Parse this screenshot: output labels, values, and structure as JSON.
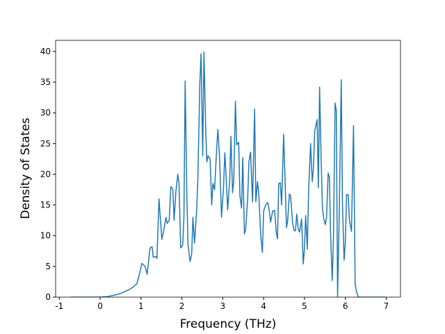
{
  "chart_data": {
    "type": "line",
    "x_label": "Frequency (THz)",
    "y_label": "Density of States",
    "xlim": [
      -1.09,
      7.35
    ],
    "ylim": [
      0,
      41.8
    ],
    "xticks": [
      -1,
      0,
      1,
      2,
      3,
      4,
      5,
      6,
      7
    ],
    "yticks": [
      0,
      5,
      10,
      15,
      20,
      25,
      30,
      35,
      40
    ],
    "x": [
      -0.71,
      0.0,
      0.1,
      0.2,
      0.3,
      0.4,
      0.5,
      0.6,
      0.7,
      0.8,
      0.9,
      0.97,
      1.02,
      1.1,
      1.15,
      1.22,
      1.27,
      1.3,
      1.36,
      1.39,
      1.44,
      1.51,
      1.56,
      1.61,
      1.64,
      1.69,
      1.73,
      1.78,
      1.81,
      1.85,
      1.9,
      1.93,
      1.97,
      2.02,
      2.05,
      2.08,
      2.12,
      2.15,
      2.2,
      2.24,
      2.27,
      2.31,
      2.36,
      2.39,
      2.44,
      2.47,
      2.51,
      2.54,
      2.58,
      2.61,
      2.64,
      2.69,
      2.73,
      2.76,
      2.8,
      2.85,
      2.88,
      2.92,
      2.97,
      3.02,
      3.05,
      3.08,
      3.12,
      3.17,
      3.2,
      3.24,
      3.27,
      3.31,
      3.34,
      3.39,
      3.42,
      3.46,
      3.49,
      3.53,
      3.56,
      3.61,
      3.64,
      3.68,
      3.73,
      3.78,
      3.81,
      3.85,
      3.88,
      3.93,
      3.97,
      4.0,
      4.05,
      4.1,
      4.14,
      4.17,
      4.22,
      4.27,
      4.31,
      4.34,
      4.37,
      4.41,
      4.44,
      4.49,
      4.53,
      4.56,
      4.59,
      4.63,
      4.66,
      4.71,
      4.75,
      4.78,
      4.81,
      4.85,
      4.88,
      4.93,
      4.97,
      5.0,
      5.03,
      5.07,
      5.1,
      5.15,
      5.19,
      5.22,
      5.25,
      5.31,
      5.34,
      5.37,
      5.41,
      5.44,
      5.47,
      5.51,
      5.54,
      5.58,
      5.61,
      5.64,
      5.68,
      5.71,
      5.75,
      5.78,
      5.81,
      5.85,
      5.9,
      5.93,
      5.97,
      6.0,
      6.03,
      6.07,
      6.1,
      6.15,
      6.2,
      6.24,
      6.27,
      6.32,
      6.97
    ],
    "series": [
      {
        "color": "#1f77b4",
        "values": [
          0,
          0,
          0.05,
          0.12,
          0.25,
          0.4,
          0.6,
          0.9,
          1.2,
          1.6,
          2.2,
          4,
          5.5,
          5,
          3.7,
          8,
          8.2,
          6.5,
          6.6,
          6.3,
          16,
          9.4,
          11,
          13,
          12,
          12.5,
          18,
          17.5,
          12.5,
          17,
          20,
          18.5,
          8,
          8.5,
          13,
          35.2,
          17,
          8.5,
          5.8,
          7,
          13,
          8.8,
          14,
          19,
          35,
          39.6,
          23,
          39.9,
          28,
          22,
          23,
          22.5,
          15,
          18.5,
          17.5,
          24,
          27.3,
          23,
          13,
          18,
          23.5,
          20,
          14.2,
          19,
          26.2,
          17,
          19,
          31.9,
          24.8,
          25.2,
          16.5,
          14.5,
          22.7,
          10.3,
          11,
          16,
          22,
          23.6,
          15.5,
          30.6,
          15.5,
          18.8,
          17,
          10,
          7.3,
          14,
          15,
          15.4,
          14,
          12.2,
          14,
          14.1,
          10.5,
          9.5,
          18.5,
          18.6,
          15,
          26.5,
          18,
          11.3,
          12.5,
          16.8,
          16.5,
          12,
          10.8,
          10.8,
          13.5,
          11,
          10.6,
          12.7,
          5.4,
          8,
          13.3,
          7.8,
          17,
          25,
          18.8,
          21,
          27,
          28.9,
          17.8,
          34.2,
          22,
          14.5,
          12.8,
          11.8,
          13,
          20.2,
          19.5,
          10,
          2.7,
          10,
          31.6,
          30.3,
          0,
          13,
          35.4,
          15,
          6,
          9,
          16.7,
          16.7,
          12.5,
          10.7,
          27.9,
          2.2,
          1,
          0,
          0
        ]
      }
    ]
  }
}
